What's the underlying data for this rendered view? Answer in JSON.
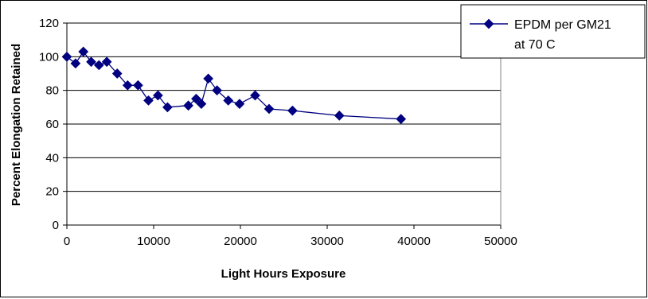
{
  "chart_data": {
    "type": "scatter",
    "xlabel": "Light Hours Exposure",
    "ylabel": "Percent Elongation Retained",
    "xlim": [
      0,
      50000
    ],
    "ylim": [
      0,
      120
    ],
    "x_ticks": [
      "0",
      "10000",
      "20000",
      "30000",
      "40000",
      "50000"
    ],
    "y_ticks": [
      "0",
      "20",
      "40",
      "60",
      "80",
      "100",
      "120"
    ],
    "grid": "horizontal",
    "legend_position": "top-right",
    "series_color": "#000080",
    "series": [
      {
        "name": "EPDM per GM21 at 70 C",
        "name_lines": [
          "EPDM per GM21",
          "at 70 C"
        ],
        "points": [
          [
            0,
            100
          ],
          [
            1000,
            96
          ],
          [
            1900,
            103
          ],
          [
            2800,
            97
          ],
          [
            3700,
            95
          ],
          [
            4600,
            97
          ],
          [
            5800,
            90
          ],
          [
            7000,
            83
          ],
          [
            8200,
            83
          ],
          [
            9400,
            74
          ],
          [
            10500,
            77
          ],
          [
            11600,
            70
          ],
          [
            14000,
            71
          ],
          [
            14900,
            75
          ],
          [
            15500,
            72
          ],
          [
            16300,
            87
          ],
          [
            17300,
            80
          ],
          [
            18600,
            74
          ],
          [
            19900,
            72
          ],
          [
            21700,
            77
          ],
          [
            23300,
            69
          ],
          [
            26000,
            68
          ],
          [
            31400,
            65
          ],
          [
            38500,
            63
          ]
        ]
      }
    ]
  }
}
